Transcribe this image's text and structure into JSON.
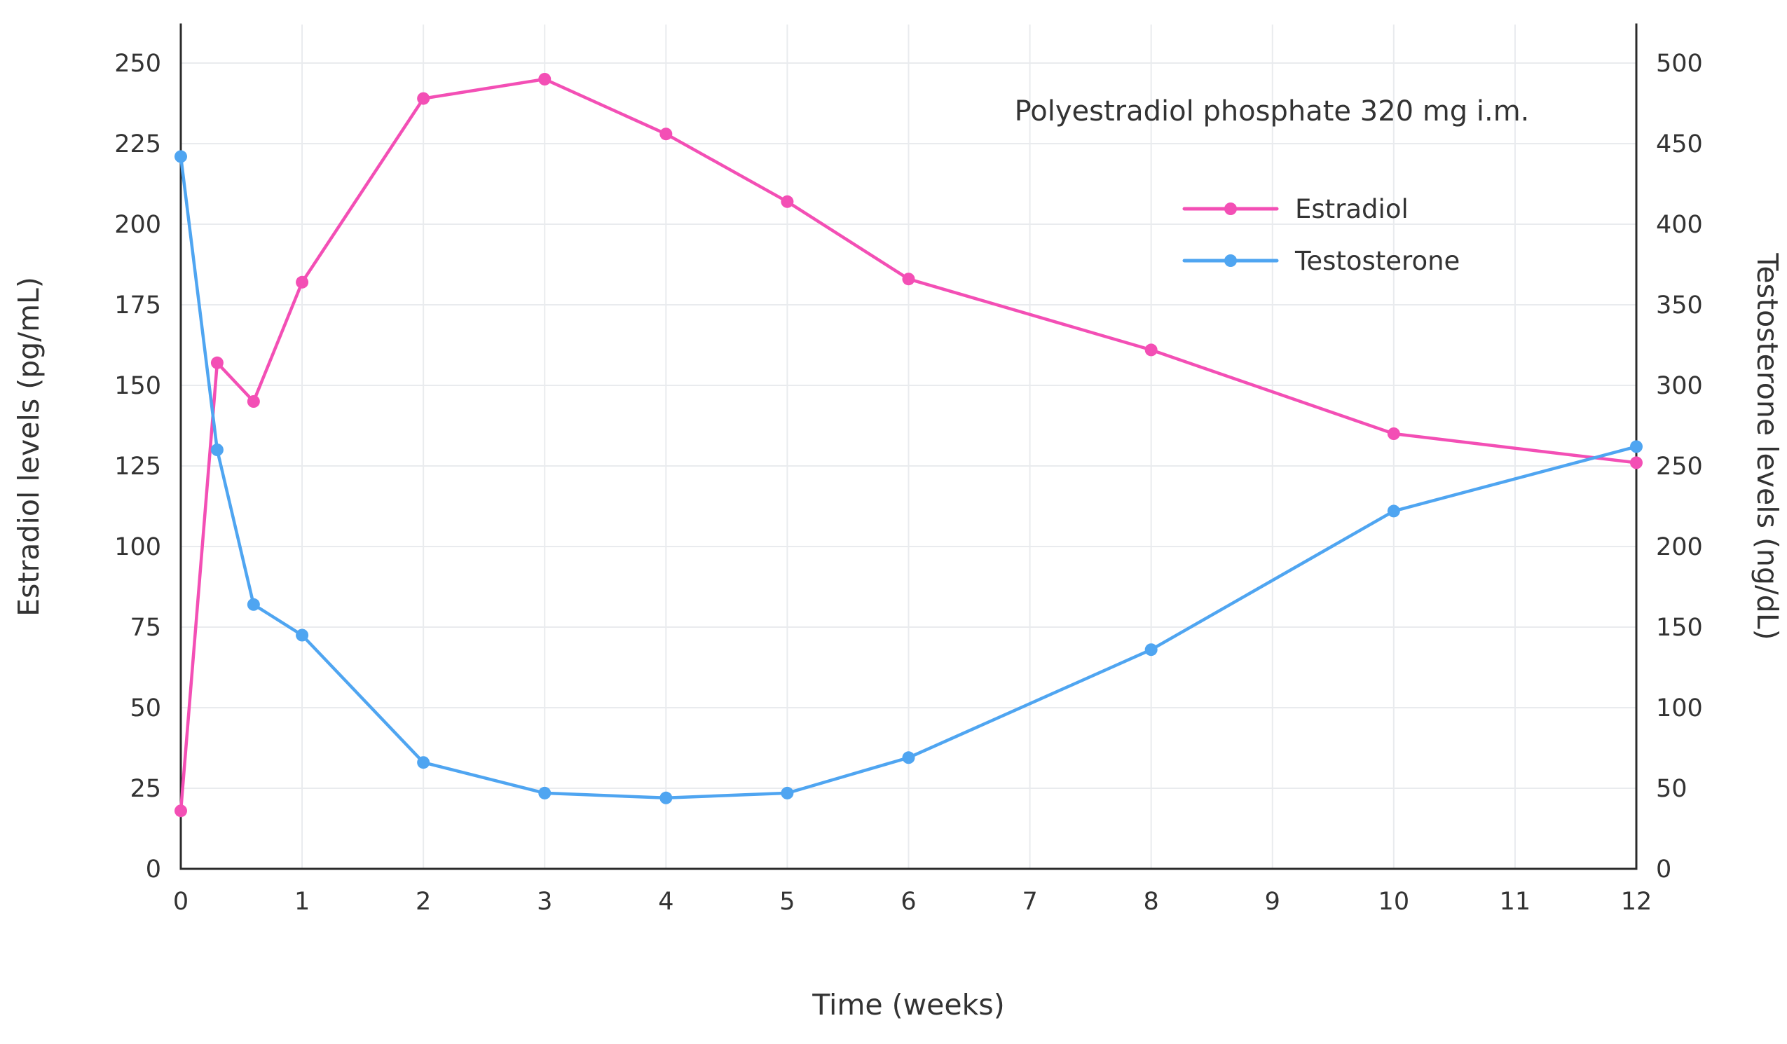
{
  "chart_data": {
    "type": "line",
    "annotation": "Polyestradiol phosphate 320 mg i.m.",
    "xlabel": "Time (weeks)",
    "ylabel_left": "Estradiol levels (pg/mL)",
    "ylabel_right": "Testosterone levels (ng/dL)",
    "xlim": [
      0,
      12
    ],
    "x_ticks": [
      0,
      1,
      2,
      3,
      4,
      5,
      6,
      7,
      8,
      9,
      10,
      11,
      12
    ],
    "ylim_left": [
      0,
      250
    ],
    "y_ticks_left": [
      0,
      25,
      50,
      75,
      100,
      125,
      150,
      175,
      200,
      225,
      250
    ],
    "ylim_right": [
      0,
      500
    ],
    "y_ticks_right": [
      0,
      50,
      100,
      150,
      200,
      250,
      300,
      350,
      400,
      450,
      500
    ],
    "grid": true,
    "legend_position": "top-right",
    "series": [
      {
        "name": "Estradiol",
        "axis": "left",
        "color": "#F34FB5",
        "x": [
          0,
          0.3,
          0.6,
          1,
          2,
          3,
          4,
          5,
          6,
          8,
          10,
          12
        ],
        "y": [
          18,
          157,
          145,
          182,
          239,
          245,
          228,
          207,
          183,
          161,
          135,
          126
        ]
      },
      {
        "name": "Testosterone",
        "axis": "right",
        "color": "#4FA5F1",
        "x": [
          0,
          0.3,
          0.6,
          1,
          2,
          3,
          4,
          5,
          6,
          8,
          10,
          12
        ],
        "y": [
          442,
          260,
          164,
          145,
          66,
          47,
          44,
          47,
          69,
          136,
          222,
          262
        ]
      }
    ]
  },
  "colors": {
    "grid": "#E9EBEE",
    "axis": "#2B2B2B",
    "text": "#333333",
    "background": "#FFFFFF"
  }
}
